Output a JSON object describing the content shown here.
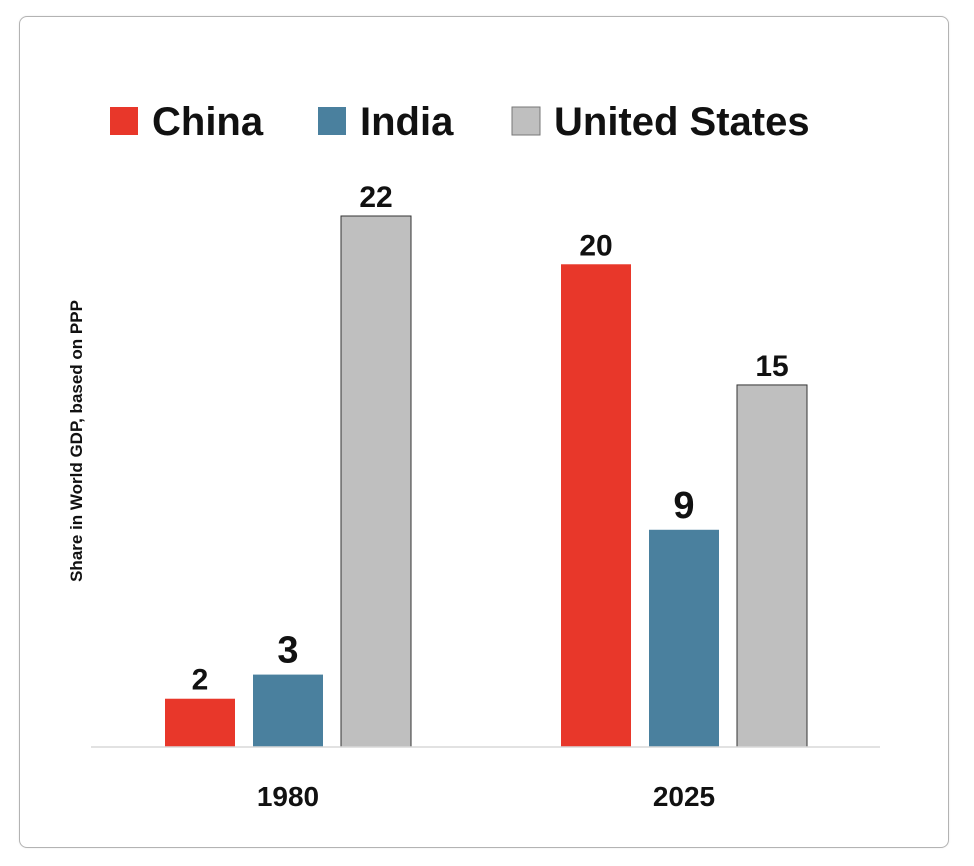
{
  "chart_data": {
    "type": "bar",
    "title": "",
    "xlabel": "",
    "ylabel": "Share in World GDP, based on PPP",
    "categories": [
      "1980",
      "2025"
    ],
    "series": [
      {
        "name": "China",
        "color": "#e8372a",
        "values": [
          2,
          20
        ]
      },
      {
        "name": "India",
        "color": "#4a809e",
        "values": [
          3,
          9
        ]
      },
      {
        "name": "United States",
        "color": "#bfbfbf",
        "values": [
          22,
          15
        ]
      }
    ],
    "ylim": [
      0,
      22
    ],
    "grid": false,
    "legend": "top"
  }
}
